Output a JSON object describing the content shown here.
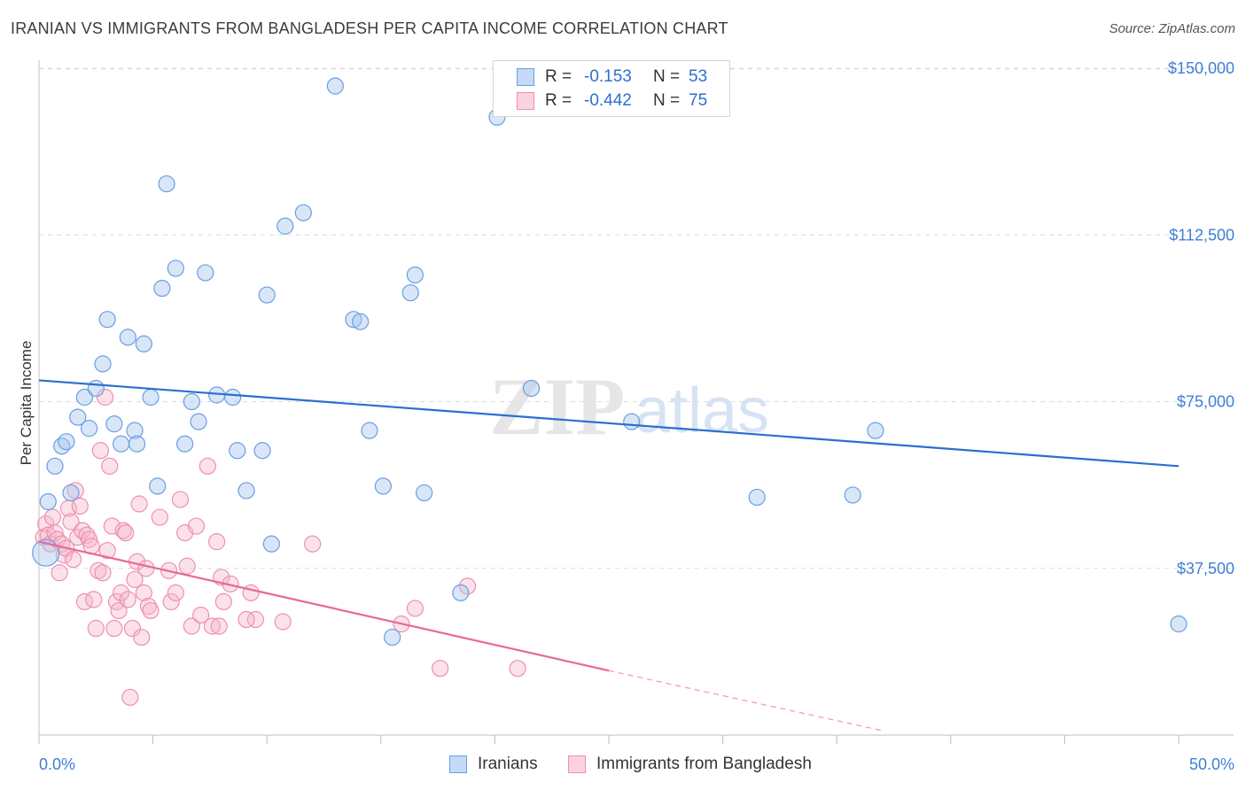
{
  "title": "IRANIAN VS IMMIGRANTS FROM BANGLADESH PER CAPITA INCOME CORRELATION CHART",
  "source": "Source: ZipAtlas.com",
  "watermark": {
    "zip": "ZIP",
    "atlas": "atlas"
  },
  "legend": {
    "r_label": "R =",
    "n_label": "N =",
    "rows": [
      {
        "r": "-0.153",
        "n": "53",
        "color": "#a9c8f0"
      },
      {
        "r": "-0.442",
        "n": "75",
        "color": "#f6b6cb"
      }
    ]
  },
  "chart_data": {
    "type": "scatter",
    "title": "IRANIAN VS IMMIGRANTS FROM BANGLADESH PER CAPITA INCOME CORRELATION CHART",
    "ylabel": "Per Capita Income",
    "xlabel": "",
    "xlim": [
      0,
      50
    ],
    "ylim": [
      0,
      153000
    ],
    "x_tick_labels": [
      "0.0%",
      "50.0%"
    ],
    "y_ticks": [
      37500,
      75000,
      112500,
      150000
    ],
    "y_tick_labels": [
      "$37,500",
      "$75,000",
      "$112,500",
      "$150,000"
    ],
    "grid": true,
    "legend_position": "top-center",
    "series": [
      {
        "name": "Iranians",
        "color": "#a9c8f0",
        "stroke": "#6a9fe0",
        "line_color": "#2a6fcf",
        "trend": {
          "x0": 0,
          "y0": 79800,
          "x1": 50,
          "y1": 60500
        },
        "points": [
          [
            0.3,
            41000
          ],
          [
            0.4,
            52500
          ],
          [
            0.7,
            60500
          ],
          [
            1.0,
            65000
          ],
          [
            1.2,
            66000
          ],
          [
            1.4,
            54500
          ],
          [
            1.7,
            71500
          ],
          [
            2.0,
            76000
          ],
          [
            2.2,
            69000
          ],
          [
            2.5,
            78000
          ],
          [
            2.8,
            83500
          ],
          [
            3.0,
            93500
          ],
          [
            3.3,
            70000
          ],
          [
            3.6,
            65500
          ],
          [
            3.9,
            89500
          ],
          [
            4.2,
            68500
          ],
          [
            4.3,
            65500
          ],
          [
            4.6,
            88000
          ],
          [
            4.9,
            76000
          ],
          [
            5.2,
            56000
          ],
          [
            5.4,
            100500
          ],
          [
            5.6,
            124000
          ],
          [
            6.0,
            105000
          ],
          [
            6.4,
            65500
          ],
          [
            6.7,
            75000
          ],
          [
            7.0,
            70500
          ],
          [
            7.3,
            104000
          ],
          [
            7.8,
            76500
          ],
          [
            8.5,
            76000
          ],
          [
            8.7,
            64000
          ],
          [
            9.1,
            55000
          ],
          [
            9.8,
            64000
          ],
          [
            10.0,
            99000
          ],
          [
            10.2,
            43000
          ],
          [
            10.8,
            114500
          ],
          [
            11.6,
            117500
          ],
          [
            13.0,
            146000
          ],
          [
            13.8,
            93500
          ],
          [
            14.1,
            93000
          ],
          [
            14.5,
            68500
          ],
          [
            15.1,
            56000
          ],
          [
            15.5,
            22000
          ],
          [
            16.3,
            99500
          ],
          [
            16.5,
            103500
          ],
          [
            16.9,
            54500
          ],
          [
            18.5,
            32000
          ],
          [
            20.1,
            139000
          ],
          [
            21.6,
            78000
          ],
          [
            26.0,
            70500
          ],
          [
            31.5,
            53500
          ],
          [
            35.7,
            54000
          ],
          [
            36.7,
            68500
          ],
          [
            50.0,
            25000
          ]
        ]
      },
      {
        "name": "Immigrants from Bangladesh",
        "color": "#f6b6cb",
        "stroke": "#ef8fae",
        "line_color": "#e8689a",
        "trend": {
          "x0": 0,
          "y0": 43500,
          "x1": 25,
          "y1": 14500
        },
        "trend_dashed_to": {
          "x": 37,
          "y": 1000
        },
        "points": [
          [
            0.2,
            44500
          ],
          [
            0.3,
            47500
          ],
          [
            0.4,
            45000
          ],
          [
            0.5,
            43000
          ],
          [
            0.6,
            49000
          ],
          [
            0.7,
            45500
          ],
          [
            0.8,
            44000
          ],
          [
            0.9,
            36500
          ],
          [
            1.0,
            43000
          ],
          [
            1.1,
            40500
          ],
          [
            1.2,
            42000
          ],
          [
            1.3,
            51000
          ],
          [
            1.4,
            48000
          ],
          [
            1.5,
            39500
          ],
          [
            1.6,
            55000
          ],
          [
            1.7,
            44500
          ],
          [
            1.8,
            51500
          ],
          [
            1.9,
            46000
          ],
          [
            2.0,
            30000
          ],
          [
            2.1,
            45000
          ],
          [
            2.2,
            44000
          ],
          [
            2.3,
            42500
          ],
          [
            2.4,
            30500
          ],
          [
            2.5,
            24000
          ],
          [
            2.6,
            37000
          ],
          [
            2.7,
            64000
          ],
          [
            2.8,
            36500
          ],
          [
            2.9,
            76000
          ],
          [
            3.0,
            41500
          ],
          [
            3.1,
            60500
          ],
          [
            3.2,
            47000
          ],
          [
            3.3,
            24000
          ],
          [
            3.4,
            30000
          ],
          [
            3.5,
            28000
          ],
          [
            3.6,
            32000
          ],
          [
            3.7,
            46000
          ],
          [
            3.8,
            45500
          ],
          [
            3.9,
            30500
          ],
          [
            4.0,
            8500
          ],
          [
            4.1,
            24000
          ],
          [
            4.2,
            35000
          ],
          [
            4.3,
            39000
          ],
          [
            4.4,
            52000
          ],
          [
            4.5,
            22000
          ],
          [
            4.6,
            32000
          ],
          [
            4.7,
            37500
          ],
          [
            4.8,
            29000
          ],
          [
            4.9,
            28000
          ],
          [
            5.3,
            49000
          ],
          [
            5.7,
            37000
          ],
          [
            5.8,
            30000
          ],
          [
            6.0,
            32000
          ],
          [
            6.2,
            53000
          ],
          [
            6.4,
            45500
          ],
          [
            6.5,
            38000
          ],
          [
            6.7,
            24500
          ],
          [
            6.9,
            47000
          ],
          [
            7.1,
            27000
          ],
          [
            7.4,
            60500
          ],
          [
            7.6,
            24500
          ],
          [
            7.8,
            43500
          ],
          [
            7.9,
            24500
          ],
          [
            8.0,
            35500
          ],
          [
            8.1,
            30000
          ],
          [
            8.4,
            34000
          ],
          [
            9.3,
            32000
          ],
          [
            9.5,
            26000
          ],
          [
            10.7,
            25500
          ],
          [
            12.0,
            43000
          ],
          [
            15.9,
            25000
          ],
          [
            16.5,
            28500
          ],
          [
            17.6,
            15000
          ],
          [
            18.8,
            33500
          ],
          [
            21.0,
            15000
          ],
          [
            9.1,
            26000
          ]
        ]
      }
    ]
  },
  "bottom_legend": [
    {
      "label": "Iranians"
    },
    {
      "label": "Immigrants from Bangladesh"
    }
  ]
}
